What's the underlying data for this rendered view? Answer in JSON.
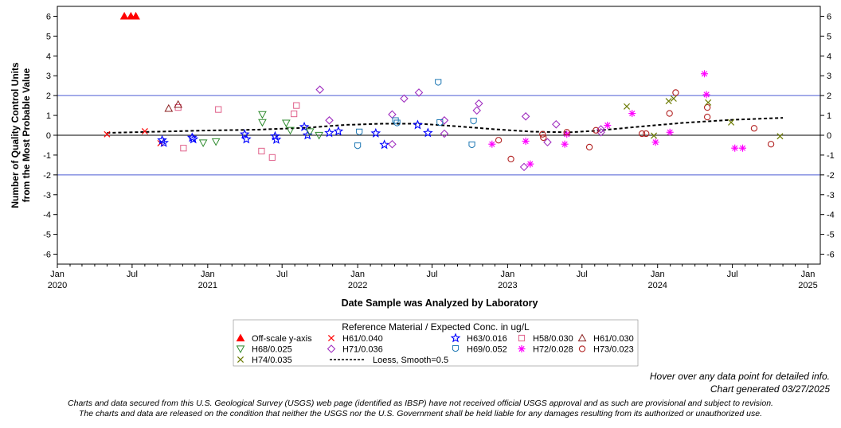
{
  "colors": {
    "frame": "#000000",
    "limit_line": "#4a5bd4",
    "zero_line": "#000000",
    "loess": "#000000"
  },
  "notes": {
    "hover": "Hover over any data point for detailed info.",
    "generated": "Chart generated 03/27/2025",
    "disclaimer_line1": "Charts and data secured from this U.S. Geological Survey (USGS) web page (identified as IBSP) have not received official USGS approval and as such are provisional and subject to revision.",
    "disclaimer_line2": "The charts and data are released on the condition that neither the USGS nor the U.S. Government shall be held liable for any damages resulting from its authorized or unauthorized use."
  },
  "chart_data": {
    "type": "scatter",
    "title": "",
    "xlabel": "Date Sample was Analyzed by Laboratory",
    "ylabel_line1": "Number of Quality Control Units",
    "ylabel_line2": "from the Most Probable Value",
    "ylim": [
      -6.5,
      6.5
    ],
    "xlim": [
      "2020-01-01",
      "2025-01-31"
    ],
    "y_ticks": [
      -6,
      -5,
      -4,
      -3,
      -2,
      -1,
      0,
      1,
      2,
      3,
      4,
      5,
      6
    ],
    "x_ticks": [
      {
        "date": "2020-01-01",
        "label": "Jan",
        "year": "2020"
      },
      {
        "date": "2020-07-01",
        "label": "Jul",
        "year": ""
      },
      {
        "date": "2021-01-01",
        "label": "Jan",
        "year": "2021"
      },
      {
        "date": "2021-07-01",
        "label": "Jul",
        "year": ""
      },
      {
        "date": "2022-01-01",
        "label": "Jan",
        "year": "2022"
      },
      {
        "date": "2022-07-01",
        "label": "Jul",
        "year": ""
      },
      {
        "date": "2023-01-01",
        "label": "Jan",
        "year": "2023"
      },
      {
        "date": "2023-07-01",
        "label": "Jul",
        "year": ""
      },
      {
        "date": "2024-01-01",
        "label": "Jan",
        "year": "2024"
      },
      {
        "date": "2024-07-01",
        "label": "Jul",
        "year": ""
      },
      {
        "date": "2025-01-01",
        "label": "Jan",
        "year": "2025"
      }
    ],
    "reference_lines": [
      2,
      -2
    ],
    "zero_line": 0,
    "grid": false,
    "legend_title": "Reference Material / Expected Conc. in ug/L",
    "legend_position": "bottom",
    "series": [
      {
        "name": "Off-scale y-axis",
        "marker": "triangle-filled",
        "color": "#ff0000",
        "points": [
          [
            "2020-06-12",
            6
          ],
          [
            "2020-06-28",
            6
          ],
          [
            "2020-07-10",
            6
          ]
        ]
      },
      {
        "name": "H61/0.040",
        "marker": "x",
        "color": "#ff0000",
        "points": [
          [
            "2020-05-01",
            0.05
          ],
          [
            "2020-08-01",
            0.2
          ],
          [
            "2020-09-08",
            -0.4
          ]
        ]
      },
      {
        "name": "H63/0.016",
        "marker": "star",
        "color": "#0000ff",
        "points": [
          [
            "2020-09-12",
            -0.25
          ],
          [
            "2020-09-16",
            -0.38
          ],
          [
            "2020-11-24",
            -0.12
          ],
          [
            "2020-11-27",
            -0.2
          ],
          [
            "2021-04-01",
            0.05
          ],
          [
            "2021-04-05",
            -0.2
          ],
          [
            "2021-06-14",
            -0.05
          ],
          [
            "2021-06-17",
            -0.22
          ],
          [
            "2021-08-24",
            0.42
          ],
          [
            "2021-09-01",
            0.0
          ],
          [
            "2021-10-24",
            0.12
          ],
          [
            "2021-11-15",
            0.2
          ],
          [
            "2022-02-14",
            0.1
          ],
          [
            "2022-03-07",
            -0.48
          ],
          [
            "2022-05-27",
            0.52
          ],
          [
            "2022-06-21",
            0.12
          ]
        ]
      },
      {
        "name": "H58/0.030",
        "marker": "square",
        "color": "#e0608a",
        "points": [
          [
            "2020-10-21",
            1.4
          ],
          [
            "2020-11-03",
            -0.65
          ],
          [
            "2021-01-27",
            1.3
          ],
          [
            "2021-05-12",
            -0.8
          ],
          [
            "2021-06-07",
            -1.12
          ],
          [
            "2021-07-30",
            1.08
          ],
          [
            "2021-08-05",
            1.5
          ]
        ]
      },
      {
        "name": "H61/0.030",
        "marker": "triangle",
        "color": "#8b2020",
        "points": [
          [
            "2020-09-28",
            1.35
          ],
          [
            "2020-10-21",
            1.55
          ]
        ]
      },
      {
        "name": "H68/0.025",
        "marker": "triangle-down",
        "color": "#2e8b2e",
        "points": [
          [
            "2020-12-21",
            -0.38
          ],
          [
            "2021-01-21",
            -0.32
          ],
          [
            "2021-05-14",
            1.05
          ],
          [
            "2021-05-14",
            0.65
          ],
          [
            "2021-07-11",
            0.62
          ],
          [
            "2021-07-21",
            0.25
          ],
          [
            "2021-09-07",
            0.18
          ],
          [
            "2021-09-29",
            0.0
          ]
        ]
      },
      {
        "name": "H71/0.036",
        "marker": "diamond",
        "color": "#a030c0",
        "points": [
          [
            "2021-10-01",
            2.3
          ],
          [
            "2021-10-24",
            0.75
          ],
          [
            "2022-03-26",
            1.05
          ],
          [
            "2022-03-26",
            -0.45
          ],
          [
            "2022-04-24",
            1.85
          ],
          [
            "2022-05-30",
            2.15
          ],
          [
            "2022-07-31",
            0.75
          ],
          [
            "2022-07-31",
            0.08
          ],
          [
            "2022-10-18",
            1.25
          ],
          [
            "2022-10-23",
            1.6
          ],
          [
            "2023-02-14",
            0.95
          ],
          [
            "2023-02-10",
            -1.6
          ],
          [
            "2023-04-08",
            -0.35
          ],
          [
            "2023-04-29",
            0.55
          ],
          [
            "2023-08-16",
            0.3
          ],
          [
            "2023-08-16",
            0.15
          ]
        ]
      },
      {
        "name": "H69/0.052",
        "marker": "shield",
        "color": "#1f78b4",
        "points": [
          [
            "2022-01-01",
            -0.55
          ],
          [
            "2022-01-05",
            0.15
          ],
          [
            "2022-04-03",
            0.72
          ],
          [
            "2022-04-07",
            0.6
          ],
          [
            "2022-07-16",
            2.65
          ],
          [
            "2022-07-20",
            0.62
          ],
          [
            "2022-10-06",
            -0.5
          ],
          [
            "2022-10-10",
            0.7
          ]
        ]
      },
      {
        "name": "H72/0.028",
        "marker": "asterisk",
        "color": "#ff00ff",
        "points": [
          [
            "2022-11-24",
            -0.45
          ],
          [
            "2023-02-14",
            -0.3
          ],
          [
            "2023-02-25",
            -1.45
          ],
          [
            "2023-05-20",
            -0.45
          ],
          [
            "2023-05-25",
            0.05
          ],
          [
            "2023-09-01",
            0.5
          ],
          [
            "2023-10-31",
            1.1
          ],
          [
            "2023-12-27",
            -0.35
          ],
          [
            "2024-01-31",
            0.15
          ],
          [
            "2024-04-24",
            3.1
          ],
          [
            "2024-04-29",
            2.05
          ],
          [
            "2024-07-07",
            -0.65
          ],
          [
            "2024-07-26",
            -0.65
          ]
        ]
      },
      {
        "name": "H73/0.023",
        "marker": "circle",
        "color": "#b22222",
        "points": [
          [
            "2022-12-10",
            -0.25
          ],
          [
            "2023-01-09",
            -1.2
          ],
          [
            "2023-03-27",
            0.05
          ],
          [
            "2023-03-29",
            -0.12
          ],
          [
            "2023-05-25",
            0.15
          ],
          [
            "2023-07-19",
            -0.6
          ],
          [
            "2023-08-04",
            0.25
          ],
          [
            "2023-11-24",
            0.08
          ],
          [
            "2023-12-04",
            0.08
          ],
          [
            "2024-01-30",
            1.1
          ],
          [
            "2024-02-14",
            2.15
          ],
          [
            "2024-05-01",
            1.4
          ],
          [
            "2024-05-01",
            0.92
          ],
          [
            "2024-08-23",
            0.35
          ],
          [
            "2024-10-03",
            -0.45
          ]
        ]
      },
      {
        "name": "H74/0.035",
        "marker": "x",
        "color": "#6b7a00",
        "points": [
          [
            "2023-10-18",
            1.45
          ],
          [
            "2023-12-23",
            -0.02
          ],
          [
            "2024-01-28",
            1.72
          ],
          [
            "2024-02-09",
            1.85
          ],
          [
            "2024-05-03",
            1.65
          ],
          [
            "2024-06-28",
            0.65
          ],
          [
            "2024-10-25",
            -0.05
          ]
        ]
      },
      {
        "name": "Loess, Smoothing=0.5",
        "marker": "line-dashed",
        "color": "#000000",
        "legend_label": "Loess, Smooth=0.5",
        "line": [
          [
            "2020-05-01",
            0.12
          ],
          [
            "2020-09-01",
            0.18
          ],
          [
            "2021-01-01",
            0.24
          ],
          [
            "2021-05-01",
            0.28
          ],
          [
            "2021-09-01",
            0.38
          ],
          [
            "2021-12-01",
            0.52
          ],
          [
            "2022-03-01",
            0.58
          ],
          [
            "2022-06-01",
            0.58
          ],
          [
            "2022-09-01",
            0.45
          ],
          [
            "2022-12-01",
            0.3
          ],
          [
            "2023-03-01",
            0.18
          ],
          [
            "2023-06-01",
            0.15
          ],
          [
            "2023-08-01",
            0.22
          ],
          [
            "2023-11-01",
            0.4
          ],
          [
            "2024-03-01",
            0.62
          ],
          [
            "2024-07-01",
            0.78
          ],
          [
            "2024-11-01",
            0.88
          ]
        ]
      }
    ],
    "legend_order": [
      "Off-scale y-axis",
      "H61/0.040",
      "H63/0.016",
      "H58/0.030",
      "H61/0.030",
      "H68/0.025",
      "H71/0.036",
      "H69/0.052",
      "H72/0.028",
      "H73/0.023",
      "H74/0.035",
      "Loess, Smoothing=0.5"
    ]
  }
}
